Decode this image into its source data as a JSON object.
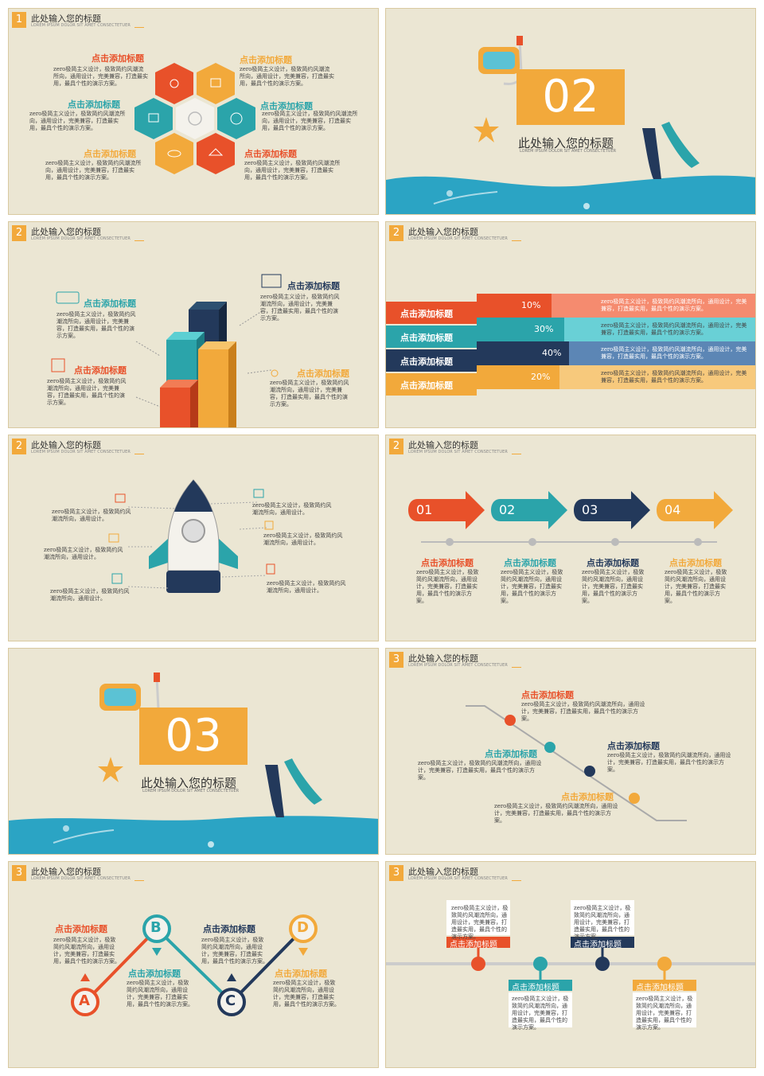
{
  "slide_title": "此处输入您的标题",
  "slide_sub": "LOREM IPSUM DOLOR SIT AMET CONSECTETUER",
  "heading": "点击添加标题",
  "body_long": "zero极简主义设计，极致简约风潮流所向，通用设计，完美兼容，打造最实用，最具个性的演示方案。",
  "body_short": "zero极简主义设计，极致简约风潮流所向，通用设计。",
  "numbers": {
    "s1": "1",
    "s2": "2",
    "s3": "3"
  },
  "section2": {
    "num": "02",
    "title": "此处输入您的标题",
    "sub": "LOREM IPSUM DOLOR SIT AMET CONSECTETUER"
  },
  "section3": {
    "num": "03",
    "title": "此处输入您的标题",
    "sub": "LOREM IPSUM DOLOR SIT AMET CONSECTETUER"
  },
  "bars": [
    "10%",
    "30%",
    "40%",
    "20%"
  ],
  "arrows": [
    "01",
    "02",
    "03",
    "04"
  ],
  "letters": [
    "A",
    "B",
    "C",
    "D"
  ],
  "colors": {
    "orange": "#e8512a",
    "teal": "#2ba4aa",
    "navy": "#23395b",
    "yellow": "#f2a93b",
    "bg": "#ebe6d3"
  }
}
